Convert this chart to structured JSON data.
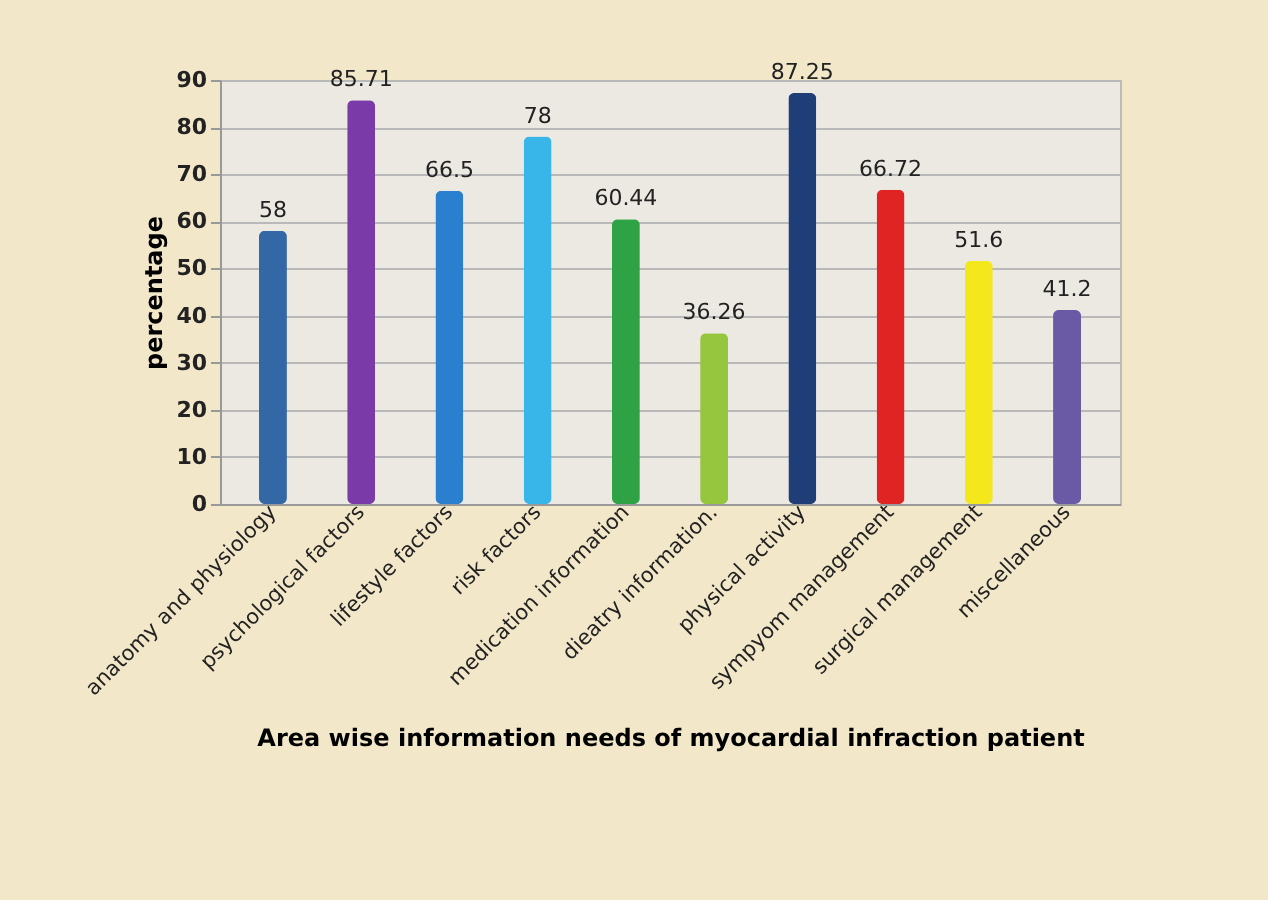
{
  "chart_data": {
    "type": "bar",
    "xlabel": "Area wise information needs of myocardial infraction patient",
    "ylabel": "percentage",
    "categories": [
      "anatomy and physiology",
      "psychological factors",
      "lifestyle factors",
      "risk factors",
      "medication information",
      "dieatry information.",
      "physical activity",
      "sympyom management",
      "surgical management",
      "miscellaneous"
    ],
    "values": [
      58,
      85.71,
      66.5,
      78,
      60.44,
      36.26,
      87.25,
      66.72,
      51.6,
      41.2
    ],
    "colors": [
      "#3467a6",
      "#7a3aa8",
      "#2a7fcf",
      "#38b6ea",
      "#2fa246",
      "#96c63e",
      "#1f3e78",
      "#e02424",
      "#f4e81c",
      "#6a5aa6"
    ],
    "ylim": [
      0,
      90
    ],
    "yticks": [
      0,
      10,
      20,
      30,
      40,
      50,
      60,
      70,
      80,
      90
    ],
    "grid": "y",
    "data_labels": true
  }
}
